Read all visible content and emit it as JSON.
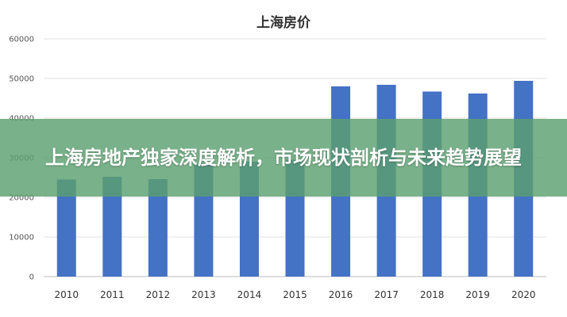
{
  "chart_data": {
    "type": "bar",
    "title": "上海房价",
    "categories": [
      "2010",
      "2011",
      "2012",
      "2013",
      "2014",
      "2015",
      "2016",
      "2017",
      "2018",
      "2019",
      "2020"
    ],
    "values": [
      24500,
      25200,
      24600,
      28600,
      29000,
      29500,
      48000,
      48400,
      46700,
      46200,
      49400
    ],
    "ylim": [
      0,
      60000
    ],
    "yticks": [
      "0",
      "10000",
      "20000",
      "30000",
      "40000",
      "50000",
      "60000"
    ],
    "grid": true,
    "bar_color": "#4472C4"
  },
  "banner": {
    "headline": "上海房地产独家深度解析，市场现状剖析与未来趋势展望",
    "background": "#5ca070"
  }
}
